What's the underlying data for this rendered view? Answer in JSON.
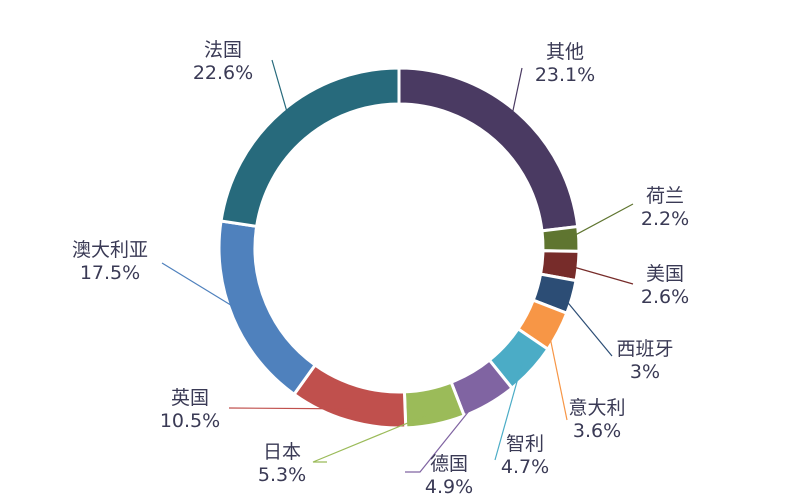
{
  "chart_data": {
    "type": "pie",
    "title": "",
    "style": "donut",
    "start": "12 o'clock",
    "direction": "clockwise",
    "slices": [
      {
        "name": "其他",
        "value": 23.1,
        "label": "23.1%",
        "color": "#4a3a62"
      },
      {
        "name": "荷兰",
        "value": 2.2,
        "label": "2.2%",
        "color": "#5f7530"
      },
      {
        "name": "美国",
        "value": 2.6,
        "label": "2.6%",
        "color": "#772c2a"
      },
      {
        "name": "西班牙",
        "value": 3.0,
        "label": "3%",
        "color": "#2c4d75"
      },
      {
        "name": "意大利",
        "value": 3.6,
        "label": "3.6%",
        "color": "#f79646"
      },
      {
        "name": "智利",
        "value": 4.7,
        "label": "4.7%",
        "color": "#4bacc6"
      },
      {
        "name": "德国",
        "value": 4.9,
        "label": "4.9%",
        "color": "#8064a2"
      },
      {
        "name": "日本",
        "value": 5.3,
        "label": "5.3%",
        "color": "#9bbb59"
      },
      {
        "name": "英国",
        "value": 10.5,
        "label": "10.5%",
        "color": "#c0504d"
      },
      {
        "name": "澳大利亚",
        "value": 17.5,
        "label": "17.5%",
        "color": "#4f81bd"
      },
      {
        "name": "法国",
        "value": 22.6,
        "label": "22.6%",
        "color": "#276a7c"
      }
    ]
  }
}
